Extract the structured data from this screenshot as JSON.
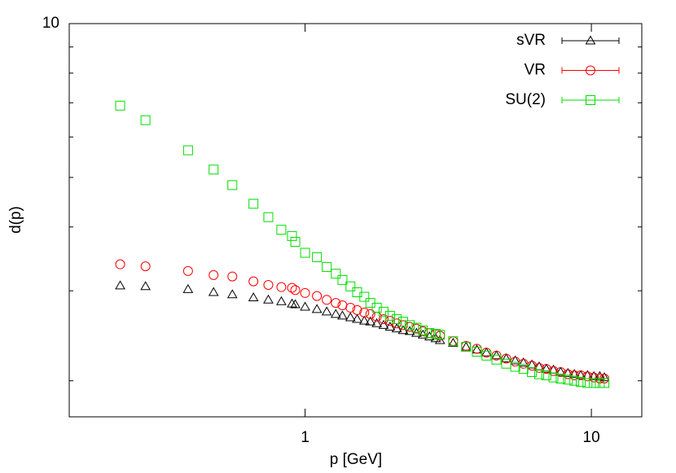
{
  "chart_data": {
    "type": "scatter",
    "x_label": "p [GeV]",
    "y_label": "d(p)",
    "log_x": true,
    "log_y": true,
    "xlim": [
      0.15,
      15
    ],
    "ylim": [
      1.7,
      10
    ],
    "xticks": [
      1,
      10
    ],
    "yticks": [
      10
    ],
    "minor_yticks": [
      2,
      3,
      4,
      5,
      6,
      7,
      8,
      9
    ],
    "legend": "top-right",
    "x": [
      0.226,
      0.277,
      0.39,
      0.479,
      0.557,
      0.66,
      0.744,
      0.826,
      0.9,
      0.924,
      1.0,
      1.1,
      1.19,
      1.28,
      1.35,
      1.44,
      1.52,
      1.61,
      1.69,
      1.78,
      1.88,
      1.98,
      2.09,
      2.2,
      2.32,
      2.45,
      2.58,
      2.72,
      2.86,
      2.96,
      3.29,
      3.65,
      3.98,
      4.3,
      4.66,
      5.04,
      5.42,
      5.79,
      6.2,
      6.57,
      6.96,
      7.37,
      7.81,
      8.28,
      8.72,
      9.18,
      9.69,
      10.2,
      10.7,
      11.1
    ],
    "series": [
      {
        "name": "sVR",
        "color": "#000000",
        "marker": "triangle",
        "values": [
          3.07,
          3.06,
          3.02,
          2.98,
          2.95,
          2.91,
          2.88,
          2.86,
          2.83,
          2.82,
          2.79,
          2.76,
          2.73,
          2.7,
          2.68,
          2.66,
          2.64,
          2.62,
          2.61,
          2.59,
          2.57,
          2.55,
          2.53,
          2.51,
          2.5,
          2.48,
          2.46,
          2.44,
          2.42,
          2.4,
          2.37,
          2.33,
          2.3,
          2.27,
          2.24,
          2.21,
          2.19,
          2.17,
          2.15,
          2.13,
          2.11,
          2.1,
          2.08,
          2.07,
          2.06,
          2.05,
          2.05,
          2.04,
          2.04,
          2.03
        ]
      },
      {
        "name": "VR",
        "color": "#ff0000",
        "marker": "circle",
        "values": [
          3.38,
          3.35,
          3.28,
          3.22,
          3.2,
          3.13,
          3.08,
          3.05,
          3.04,
          3.01,
          2.97,
          2.93,
          2.88,
          2.84,
          2.81,
          2.78,
          2.75,
          2.72,
          2.7,
          2.67,
          2.64,
          2.62,
          2.59,
          2.57,
          2.55,
          2.53,
          2.5,
          2.48,
          2.47,
          2.45,
          2.39,
          2.34,
          2.31,
          2.27,
          2.24,
          2.21,
          2.18,
          2.16,
          2.14,
          2.12,
          2.11,
          2.09,
          2.08,
          2.06,
          2.05,
          2.05,
          2.04,
          2.03,
          2.02,
          2.02
        ]
      },
      {
        "name": "SU(2)",
        "color": "#00dd00",
        "marker": "square",
        "values": [
          6.91,
          6.47,
          5.65,
          5.18,
          4.83,
          4.44,
          4.18,
          3.95,
          3.84,
          3.74,
          3.56,
          3.49,
          3.34,
          3.24,
          3.15,
          3.06,
          2.98,
          2.92,
          2.84,
          2.78,
          2.73,
          2.68,
          2.64,
          2.61,
          2.57,
          2.54,
          2.51,
          2.48,
          2.47,
          2.46,
          2.39,
          2.33,
          2.28,
          2.24,
          2.2,
          2.16,
          2.13,
          2.11,
          2.08,
          2.06,
          2.05,
          2.03,
          2.02,
          2.01,
          2.0,
          1.99,
          1.98,
          1.98,
          1.98,
          1.98
        ]
      }
    ]
  }
}
